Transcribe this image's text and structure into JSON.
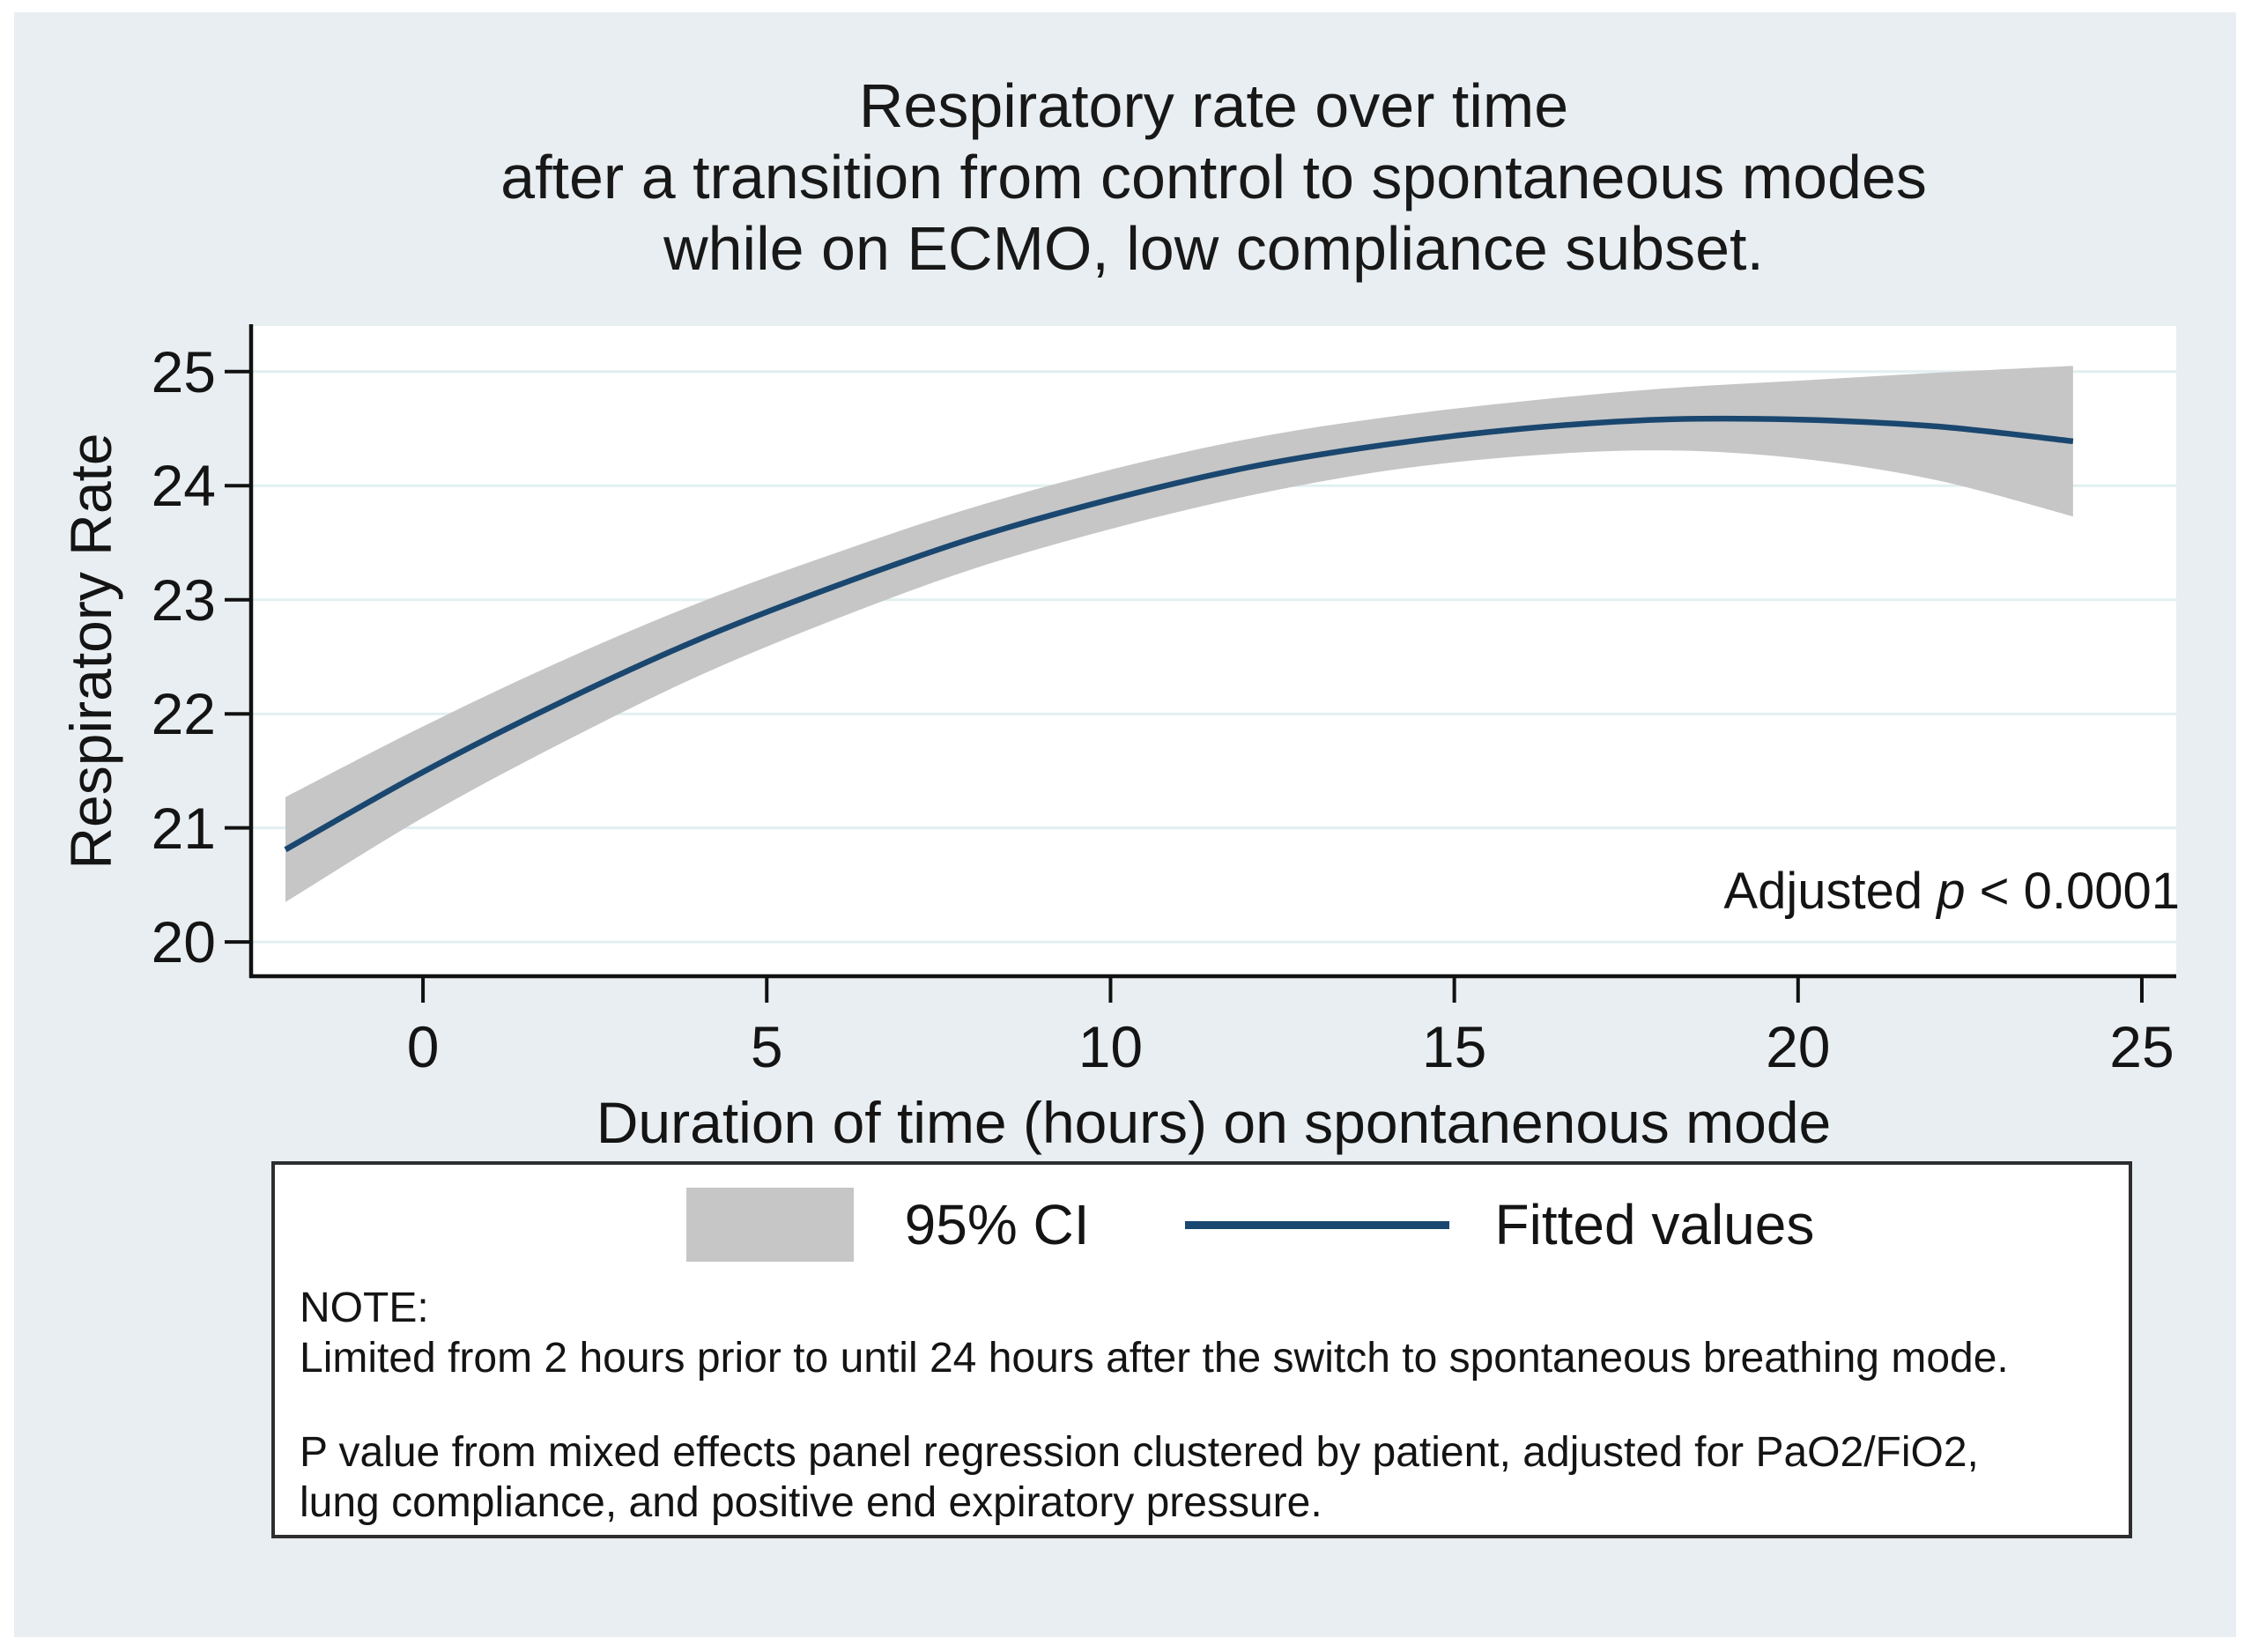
{
  "figure": {
    "background": "#ffffff",
    "panel_background": "#e8eef1"
  },
  "title": {
    "line1": "Respiratory rate over time",
    "line2": "after a transition from control to spontaneous modes",
    "line3": "while on ECMO, low compliance subset."
  },
  "annotation": {
    "prefix": "Adjusted ",
    "p": "p",
    "rest": " < 0.0001"
  },
  "legend": {
    "ci_label": "95% CI",
    "fit_label": "Fitted values"
  },
  "note": {
    "heading": "NOTE:",
    "line1": "Limited from 2 hours prior to until 24 hours after the switch to spontaneous breathing mode.",
    "line2": "P value from mixed effects panel regression clustered by patient, adjusted for PaO2/FiO2,",
    "line3": "lung compliance, and positive end expiratory pressure."
  },
  "chart_data": {
    "type": "line",
    "title": "Respiratory rate over time after a transition from control to spontaneous modes while on ECMO, low compliance subset.",
    "xlabel": "Duration of time (hours) on spontanenous mode",
    "ylabel": "Respiratory Rate",
    "xlim": [
      -2.5,
      25.5
    ],
    "ylim": [
      19.7,
      25.4
    ],
    "x_ticks": [
      0,
      5,
      10,
      15,
      20,
      25
    ],
    "x_tick_labels": [
      "0",
      "5",
      "10",
      "15",
      "20",
      "25"
    ],
    "y_ticks": [
      20,
      21,
      22,
      23,
      24,
      25
    ],
    "y_tick_labels": [
      "20",
      "21",
      "22",
      "23",
      "24",
      "25"
    ],
    "grid": true,
    "legend_position": "bottom-box",
    "annotation_text": "Adjusted p < 0.0001",
    "colors": {
      "ci_band": "#c6c6c6",
      "fitted_line": "#1a476f",
      "gridline": "#e2eff0",
      "axis": "#111111",
      "plot_background": "#ffffff"
    },
    "x": [
      -2,
      0,
      2,
      4,
      6,
      8,
      10,
      12,
      14,
      16,
      18,
      20,
      22,
      24
    ],
    "series": [
      {
        "name": "Fitted values",
        "type": "line",
        "values": [
          20.81,
          21.49,
          22.1,
          22.65,
          23.12,
          23.54,
          23.88,
          24.16,
          24.36,
          24.5,
          24.58,
          24.58,
          24.52,
          24.39
        ]
      },
      {
        "name": "95% CI",
        "type": "band",
        "lower": [
          20.35,
          21.09,
          21.74,
          22.33,
          22.83,
          23.27,
          23.62,
          23.91,
          24.13,
          24.26,
          24.31,
          24.24,
          24.05,
          23.73
        ],
        "upper": [
          21.27,
          21.89,
          22.46,
          22.97,
          23.41,
          23.81,
          24.14,
          24.41,
          24.6,
          24.74,
          24.85,
          24.92,
          24.99,
          25.05
        ]
      }
    ]
  }
}
